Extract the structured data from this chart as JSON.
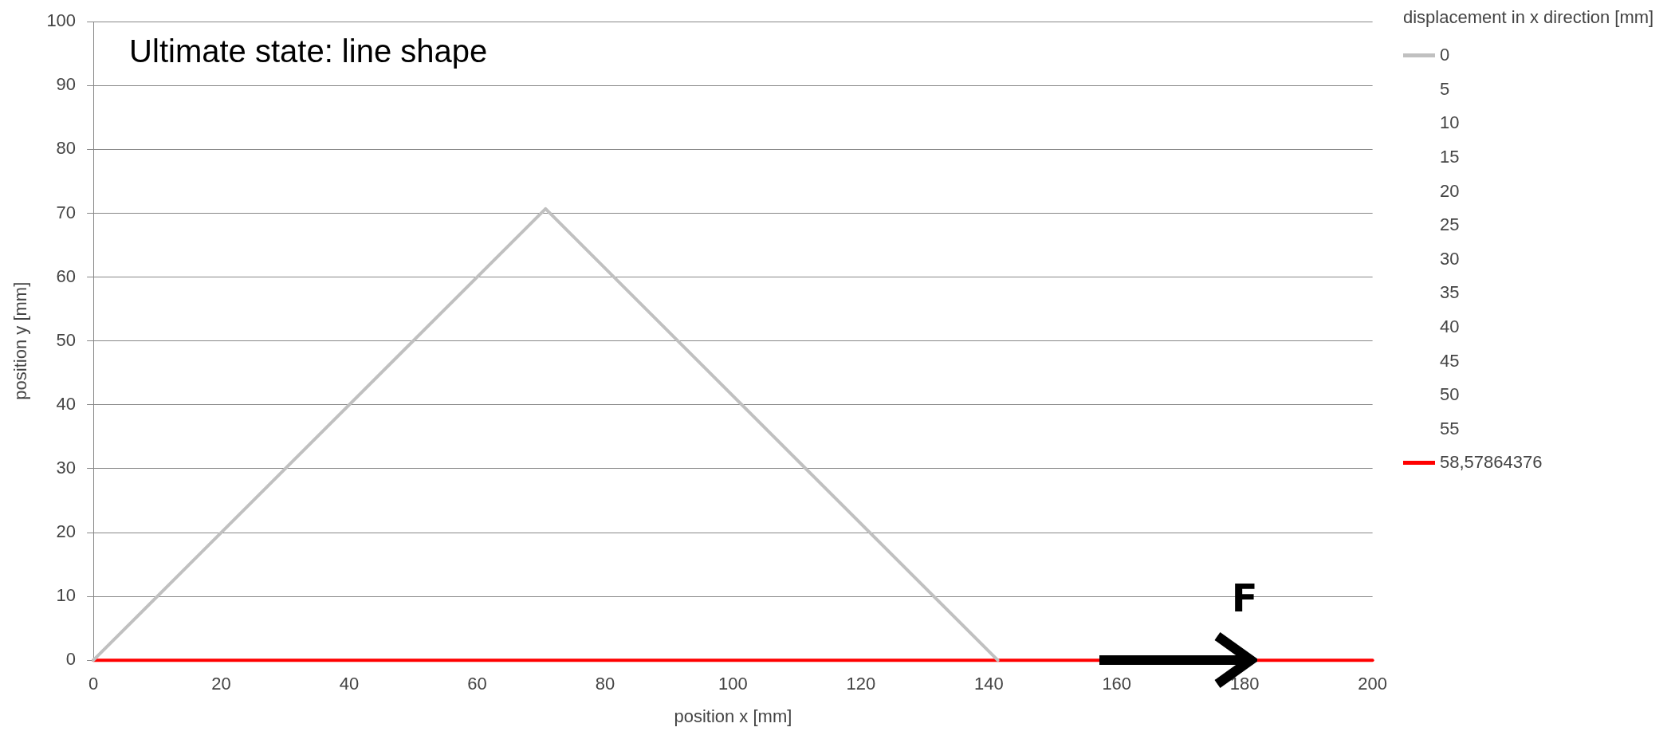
{
  "chart_data": {
    "type": "line",
    "title": "Ultimate state: line shape",
    "xlabel": "position x [mm]",
    "ylabel": "position y [mm]",
    "legend_title": "displacement in x direction [mm]",
    "xlim": [
      0,
      200
    ],
    "xticks": [
      0,
      20,
      40,
      60,
      80,
      100,
      120,
      140,
      160,
      180,
      200
    ],
    "ylim": [
      0,
      100
    ],
    "yticks": [
      0,
      10,
      20,
      30,
      40,
      50,
      60,
      70,
      80,
      90,
      100
    ],
    "grid": "y",
    "legend": "right",
    "marker": "none",
    "line_style": "solid",
    "series": [
      {
        "name": "0",
        "color": "#c0c0c0",
        "x": [
          0,
          70.7,
          141.4
        ],
        "values": [
          0,
          70.7,
          0
        ]
      },
      {
        "name": "5"
      },
      {
        "name": "10"
      },
      {
        "name": "15"
      },
      {
        "name": "20"
      },
      {
        "name": "25"
      },
      {
        "name": "30"
      },
      {
        "name": "35"
      },
      {
        "name": "40"
      },
      {
        "name": "45"
      },
      {
        "name": "50"
      },
      {
        "name": "55"
      },
      {
        "name": "58,57864376",
        "color": "#ff0000",
        "x": [
          0,
          200
        ],
        "values": [
          0,
          0
        ]
      }
    ],
    "annotations": [
      "F"
    ]
  }
}
